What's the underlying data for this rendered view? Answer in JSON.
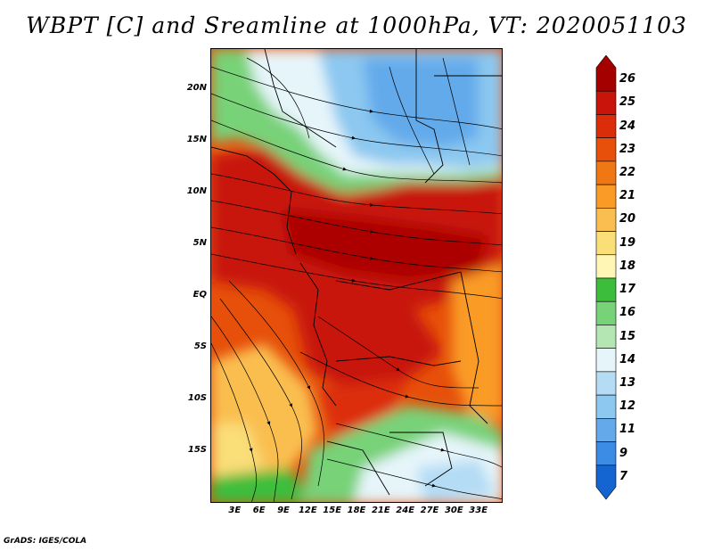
{
  "title": "WBPT [C] and Sreamline at 1000hPa, VT: 2020051103",
  "footer": "GrADS: IGES/COLA",
  "map": {
    "lat_range": [
      -20,
      24
    ],
    "lon_range": [
      0,
      36
    ],
    "lat_ticks": [
      {
        "value": 20,
        "label": "20N"
      },
      {
        "value": 15,
        "label": "15N"
      },
      {
        "value": 10,
        "label": "10N"
      },
      {
        "value": 5,
        "label": "5N"
      },
      {
        "value": 0,
        "label": "EQ"
      },
      {
        "value": -5,
        "label": "5S"
      },
      {
        "value": -10,
        "label": "10S"
      },
      {
        "value": -15,
        "label": "15S"
      }
    ],
    "lon_ticks": [
      {
        "value": 3,
        "label": "3E"
      },
      {
        "value": 6,
        "label": "6E"
      },
      {
        "value": 9,
        "label": "9E"
      },
      {
        "value": 12,
        "label": "12E"
      },
      {
        "value": 15,
        "label": "15E"
      },
      {
        "value": 18,
        "label": "18E"
      },
      {
        "value": 21,
        "label": "21E"
      },
      {
        "value": 24,
        "label": "24E"
      },
      {
        "value": 27,
        "label": "27E"
      },
      {
        "value": 30,
        "label": "30E"
      },
      {
        "value": 33,
        "label": "33E"
      }
    ]
  },
  "colorbar": {
    "labels": [
      "26",
      "25",
      "24",
      "23",
      "22",
      "21",
      "20",
      "19",
      "18",
      "17",
      "16",
      "15",
      "14",
      "13",
      "12",
      "11",
      "9",
      "7"
    ],
    "colors": [
      "#a50000",
      "#c8140a",
      "#dc2d0a",
      "#e6500a",
      "#f07814",
      "#fa9b28",
      "#fabe50",
      "#fade78",
      "#fff5b4",
      "#3cbe3c",
      "#78d278",
      "#b4e6b4",
      "#e6f5fa",
      "#b4dcf5",
      "#8cc8f0",
      "#64aaeb",
      "#3c8ce6",
      "#1464d2"
    ]
  }
}
